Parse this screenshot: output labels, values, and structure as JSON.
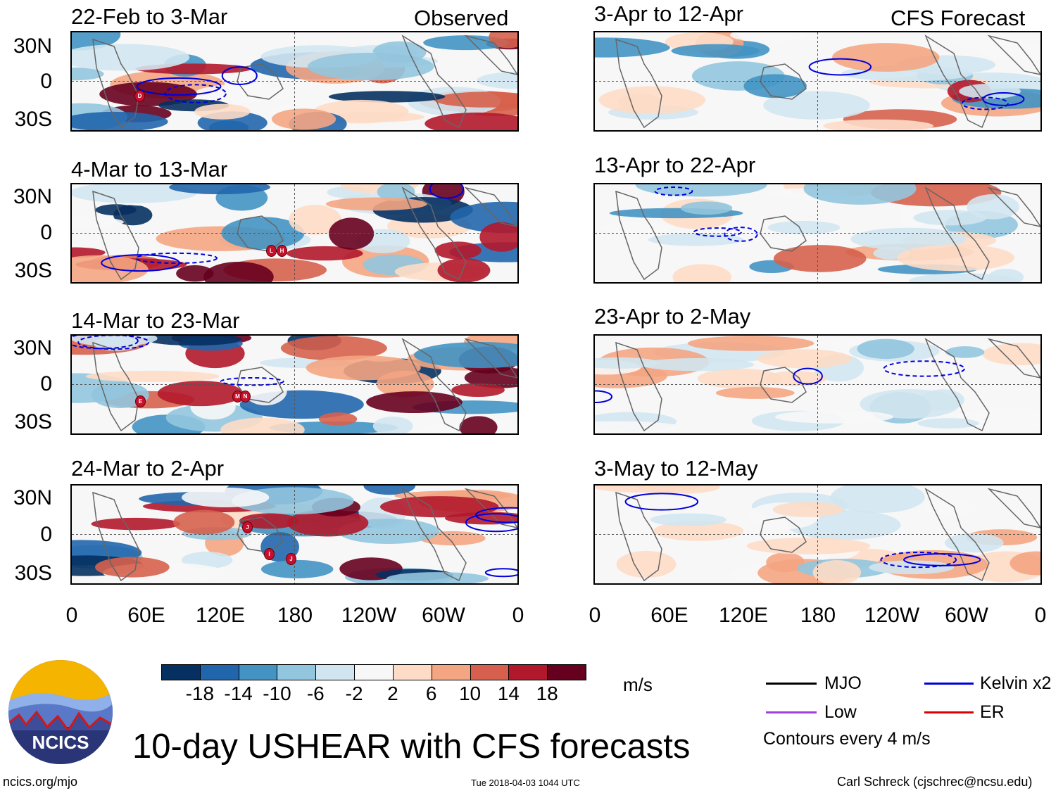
{
  "observed_label": "Observed",
  "forecast_label": "CFS Forecast",
  "panels_left": [
    {
      "title": "22-Feb to 3-Mar"
    },
    {
      "title": "4-Mar to 13-Mar"
    },
    {
      "title": "14-Mar to 23-Mar"
    },
    {
      "title": "24-Mar to 2-Apr"
    }
  ],
  "panels_right": [
    {
      "title": "3-Apr to 12-Apr"
    },
    {
      "title": "13-Apr to 22-Apr"
    },
    {
      "title": "23-Apr to 2-May"
    },
    {
      "title": "3-May to 12-May"
    }
  ],
  "y_ticks": [
    "30N",
    "0",
    "30S"
  ],
  "x_ticks": [
    "0",
    "60E",
    "120E",
    "180",
    "120W",
    "60W",
    "0"
  ],
  "storm_markers": [
    {
      "panel": 0,
      "label": "D"
    },
    {
      "panel": 1,
      "label": "L"
    },
    {
      "panel": 1,
      "label": "H"
    },
    {
      "panel": 2,
      "label": "E"
    },
    {
      "panel": 2,
      "label": "M"
    },
    {
      "panel": 2,
      "label": "N"
    },
    {
      "panel": 3,
      "label": "J"
    },
    {
      "panel": 3,
      "label": "I"
    },
    {
      "panel": 3,
      "label": "J"
    }
  ],
  "colorbar": {
    "colors": [
      "#053061",
      "#2166ac",
      "#4393c3",
      "#92c5de",
      "#d1e5f0",
      "#f7f7f7",
      "#fddbc7",
      "#f4a582",
      "#d6604d",
      "#b2182b",
      "#67001f"
    ],
    "ticks": [
      "-18",
      "-14",
      "-10",
      "-6",
      "-2",
      "2",
      "6",
      "10",
      "14",
      "18"
    ],
    "unit": "m/s"
  },
  "legend": {
    "mjo": "MJO",
    "kelvin": "Kelvin x2",
    "low": "Low",
    "er": "ER",
    "contour_note": "Contours every 4 m/s",
    "colors": {
      "mjo": "#000000",
      "kelvin": "#0000dd",
      "low": "#a040e0",
      "er": "#dd0000"
    }
  },
  "logo_text": "NCICS",
  "main_title": "10-day USHEAR with CFS forecasts",
  "footer_left": "ncics.org/mjo",
  "footer_center": "Tue 2018-04-03 1044 UTC",
  "footer_right": "Carl Schreck (cjschrec@ncsu.edu)"
}
